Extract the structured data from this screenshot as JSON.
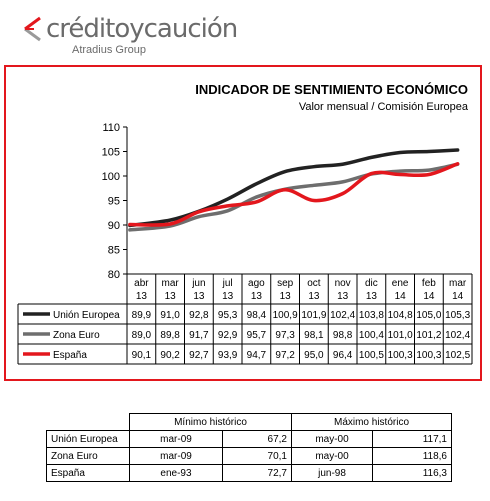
{
  "logo": {
    "name": "créditoycaución",
    "tagline": "Atradius Group",
    "colors": {
      "mark": "#e3171d",
      "text": "#6b6b6b"
    }
  },
  "chart": {
    "title": "INDICADOR DE SENTIMIENTO ECONÓMICO",
    "subtitle": "Valor mensual / Comisión Europea"
  },
  "chart_data": {
    "type": "line",
    "categories": [
      [
        "abr",
        "13"
      ],
      [
        "mar",
        "13"
      ],
      [
        "jun",
        "13"
      ],
      [
        "jul",
        "13"
      ],
      [
        "ago",
        "13"
      ],
      [
        "sep",
        "13"
      ],
      [
        "oct",
        "13"
      ],
      [
        "nov",
        "13"
      ],
      [
        "dic",
        "13"
      ],
      [
        "ene",
        "14"
      ],
      [
        "feb",
        "14"
      ],
      [
        "mar",
        "14"
      ]
    ],
    "ylim": [
      80,
      110
    ],
    "yticks": [
      80,
      85,
      90,
      95,
      100,
      105,
      110
    ],
    "grid": false,
    "legend": "data-table",
    "series": [
      {
        "name": "Unión Europea",
        "color": "#222222",
        "values": [
          89.9,
          91.0,
          92.8,
          95.3,
          98.4,
          100.9,
          101.9,
          102.4,
          103.8,
          104.8,
          105.0,
          105.3
        ],
        "labels": [
          "89,9",
          "91,0",
          "92,8",
          "95,3",
          "98,4",
          "100,9",
          "101,9",
          "102,4",
          "103,8",
          "104,8",
          "105,0",
          "105,3"
        ]
      },
      {
        "name": "Zona Euro",
        "color": "#6e6e6e",
        "values": [
          89.0,
          89.8,
          91.7,
          92.9,
          95.7,
          97.3,
          98.1,
          98.8,
          100.4,
          101.0,
          101.2,
          102.4
        ],
        "labels": [
          "89,0",
          "89,8",
          "91,7",
          "92,9",
          "95,7",
          "97,3",
          "98,1",
          "98,8",
          "100,4",
          "101,0",
          "101,2",
          "102,4"
        ]
      },
      {
        "name": "España",
        "color": "#e3171d",
        "values": [
          90.1,
          90.2,
          92.7,
          93.9,
          94.7,
          97.2,
          95.0,
          96.4,
          100.5,
          100.3,
          100.3,
          102.5
        ],
        "labels": [
          "90,1",
          "90,2",
          "92,7",
          "93,9",
          "94,7",
          "97,2",
          "95,0",
          "96,4",
          "100,5",
          "100,3",
          "100,3",
          "102,5"
        ]
      }
    ]
  },
  "historic": {
    "min_header": "Mínimo histórico",
    "max_header": "Máximo histórico",
    "rows": [
      {
        "name": "Unión Europea",
        "min_date": "mar-09",
        "min_value": "67,2",
        "max_date": "may-00",
        "max_value": "117,1"
      },
      {
        "name": "Zona Euro",
        "min_date": "mar-09",
        "min_value": "70,1",
        "max_date": "may-00",
        "max_value": "118,6"
      },
      {
        "name": "España",
        "min_date": "ene-93",
        "min_value": "72,7",
        "max_date": "jun-98",
        "max_value": "116,3"
      }
    ]
  }
}
